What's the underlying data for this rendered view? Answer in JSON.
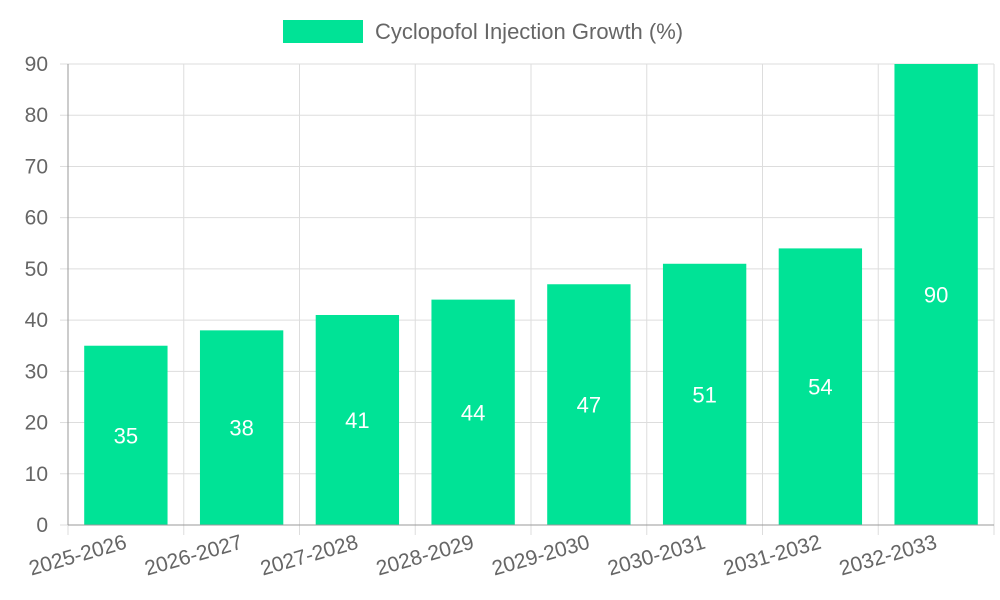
{
  "chart_data": {
    "type": "bar",
    "categories": [
      "2025-2026",
      "2026-2027",
      "2027-2028",
      "2028-2029",
      "2029-2030",
      "2030-2031",
      "2031-2032",
      "2032-2033"
    ],
    "series": [
      {
        "name": "Cyclopofol Injection Growth (%)",
        "values": [
          35,
          38,
          41,
          44,
          47,
          51,
          54,
          90
        ],
        "color": "#00e396"
      }
    ],
    "ylim": [
      0,
      90
    ],
    "yticks": [
      0,
      10,
      20,
      30,
      40,
      50,
      60,
      70,
      80,
      90
    ],
    "grid": true,
    "legend": "top-center",
    "title": "",
    "xlabel": "",
    "ylabel": ""
  }
}
